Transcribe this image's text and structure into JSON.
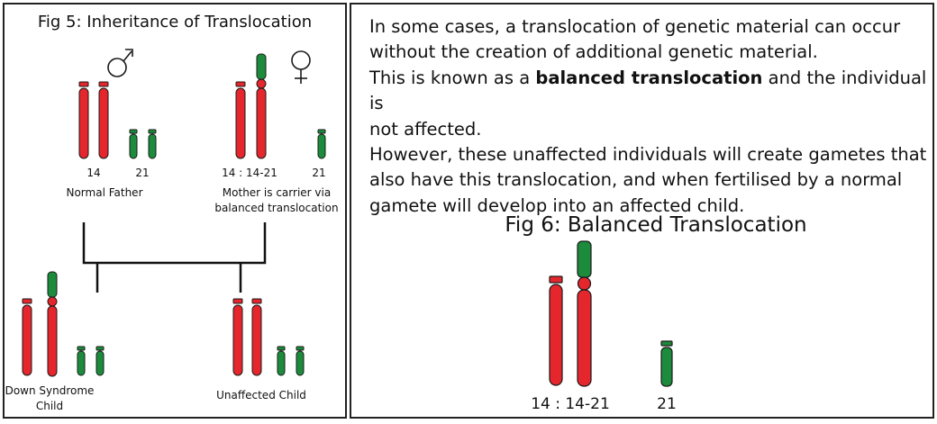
{
  "left_panel": {
    "title": "Fig 5: Inheritance of Translocation",
    "male_symbol": "male-symbol-icon",
    "female_symbol": "female-symbol-icon",
    "father": {
      "label_14": "14",
      "label_21": "21",
      "caption": "Normal Father"
    },
    "mother": {
      "label_14": "14 : 14-21",
      "label_21": "21",
      "caption_line1": "Mother is carrier via",
      "caption_line2": "balanced  translocation"
    },
    "child_down": {
      "caption_line1": "Down Syndrome",
      "caption_line2": "Child"
    },
    "child_unaffected": {
      "caption": "Unaffected Child"
    }
  },
  "right_panel": {
    "paragraph": {
      "line1": "In some cases, a translocation of genetic material can occur",
      "line2": "without the creation of additional genetic material.",
      "line3_pre": "This is known as a ",
      "line3_bold": "balanced translocation",
      "line3_post": " and the individual is",
      "line4": "not affected.",
      "line5": "However, these unaffected individuals will create gametes that",
      "line6": "also have this translocation, and when fertilised by a normal",
      "line7": "gamete will develop into an affected child."
    },
    "fig_title": "Fig 6: Balanced Translocation",
    "label_14": "14 : 14-21",
    "label_21": "21"
  },
  "colors": {
    "red_chromosome": "#e5262c",
    "green_chromosome": "#1c8c3c",
    "outline": "#1a1a1a"
  }
}
